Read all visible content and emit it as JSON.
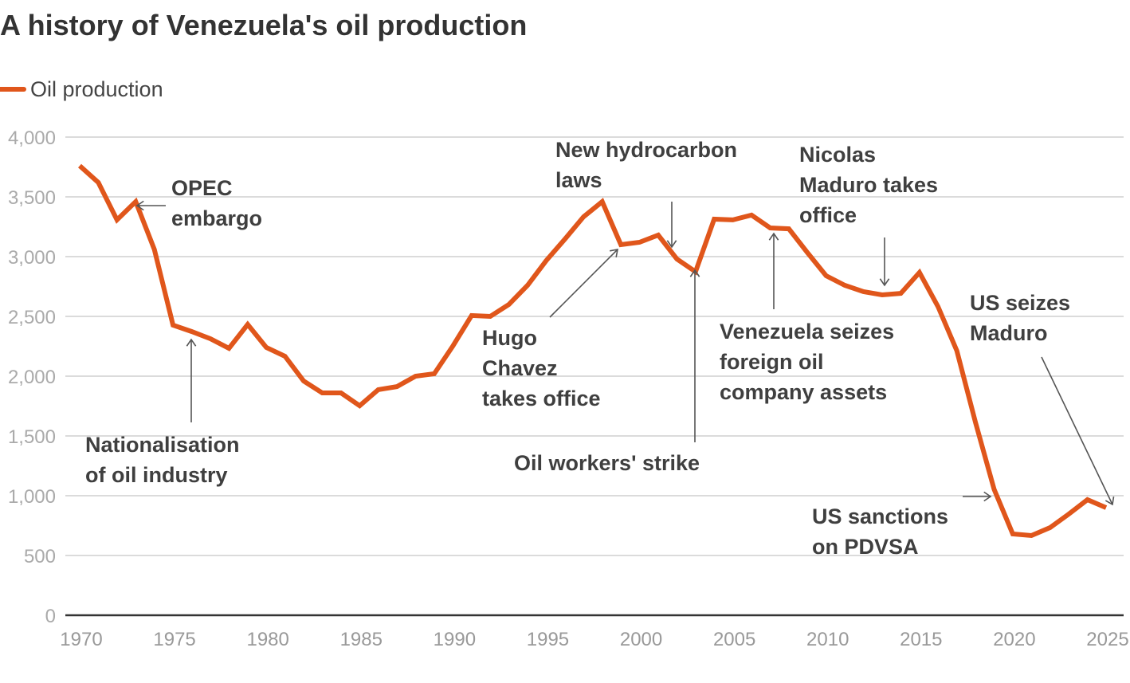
{
  "chart_data": {
    "type": "line",
    "title": "A history of Venezuela's oil production",
    "xlabel": "",
    "ylabel": "",
    "xlim": [
      1970,
      2025
    ],
    "ylim": [
      0,
      4000
    ],
    "grid": true,
    "legend_position": "top-left",
    "yticks": [
      0,
      500,
      1000,
      1500,
      2000,
      2500,
      3000,
      3500,
      4000
    ],
    "ytick_labels": [
      "0",
      "500",
      "1,000",
      "1,500",
      "2,000",
      "2,500",
      "3,000",
      "3,500",
      "4,000"
    ],
    "xticks": [
      1970,
      1975,
      1980,
      1985,
      1990,
      1995,
      2000,
      2005,
      2010,
      2015,
      2020,
      2025
    ],
    "xtick_labels": [
      "1970",
      "1975",
      "1980",
      "1985",
      "1990",
      "1995",
      "2000",
      "2005",
      "2010",
      "2015",
      "2020",
      "2025"
    ],
    "series": [
      {
        "name": "Oil production",
        "color": "#e0561b",
        "x": [
          1970,
          1971,
          1972,
          1973,
          1974,
          1975,
          1976,
          1977,
          1978,
          1979,
          1980,
          1981,
          1982,
          1983,
          1984,
          1985,
          1986,
          1987,
          1988,
          1989,
          1990,
          1991,
          1992,
          1993,
          1994,
          1995,
          1996,
          1997,
          1998,
          1999,
          2000,
          2001,
          2002,
          2003,
          2004,
          2005,
          2006,
          2007,
          2008,
          2009,
          2010,
          2011,
          2012,
          2013,
          2014,
          2015,
          2016,
          2017,
          2018,
          2019,
          2020,
          2021,
          2022,
          2023,
          2024,
          2025
        ],
        "y": [
          3760,
          3620,
          3307,
          3460,
          3060,
          2427,
          2373,
          2313,
          2233,
          2433,
          2240,
          2167,
          1960,
          1860,
          1860,
          1753,
          1887,
          1913,
          2000,
          2020,
          2253,
          2507,
          2500,
          2600,
          2760,
          2967,
          3147,
          3333,
          3460,
          3100,
          3120,
          3180,
          2980,
          2873,
          3313,
          3307,
          3347,
          3240,
          3233,
          3033,
          2840,
          2760,
          2707,
          2680,
          2693,
          2867,
          2580,
          2213,
          1613,
          1053,
          680,
          667,
          733,
          847,
          967,
          900
        ]
      }
    ],
    "annotations": [
      {
        "id": "opec",
        "lines": [
          "OPEC",
          "embargo"
        ]
      },
      {
        "id": "nationalisation",
        "lines": [
          "Nationalisation",
          "of oil industry"
        ]
      },
      {
        "id": "chavez",
        "lines": [
          "Hugo",
          "Chavez",
          "takes office"
        ]
      },
      {
        "id": "hydrocarbon",
        "lines": [
          "New hydrocarbon",
          "laws"
        ]
      },
      {
        "id": "strike",
        "lines": [
          "Oil workers' strike"
        ]
      },
      {
        "id": "maduro",
        "lines": [
          "Nicolas",
          "Maduro takes",
          "office"
        ]
      },
      {
        "id": "seizes",
        "lines": [
          "Venezuela seizes",
          "foreign oil",
          "company assets"
        ]
      },
      {
        "id": "us-seizes",
        "lines": [
          "US seizes",
          "Maduro"
        ]
      },
      {
        "id": "sanctions",
        "lines": [
          "US sanctions",
          "on PDVSA"
        ]
      }
    ]
  }
}
